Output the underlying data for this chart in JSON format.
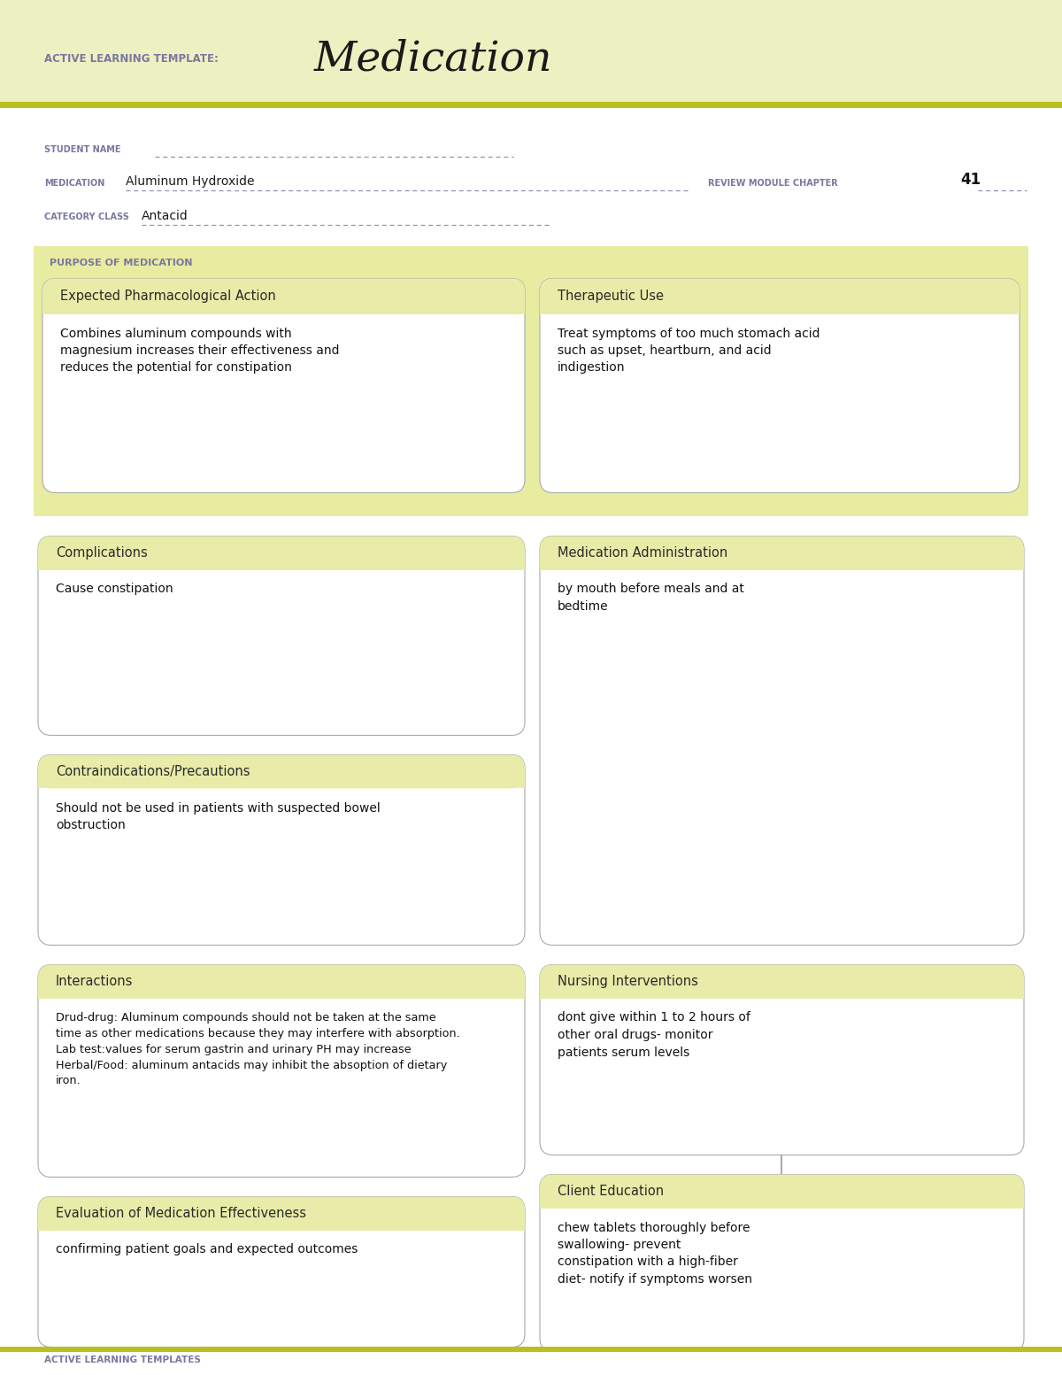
{
  "page_bg": "#ffffff",
  "header_bg": "#edf0c0",
  "header_stripe_color": "#b8c020",
  "header_label": "ACTIVE LEARNING TEMPLATE:",
  "header_title": "Medication",
  "header_label_color": "#7878a0",
  "header_title_color": "#1a1a1a",
  "student_name_label": "STUDENT NAME",
  "medication_label": "MEDICATION",
  "medication_value": "Aluminum Hydroxide",
  "review_label": "REVIEW MODULE CHAPTER",
  "review_value": "41",
  "category_label": "CATEGORY CLASS",
  "category_value": "Antacid",
  "label_color": "#7878a0",
  "underline_color": "#9090bb",
  "purpose_label": "PURPOSE OF MEDICATION",
  "purpose_bg": "#e8eca0",
  "box_border": "#aaaaaa",
  "box_header_bg": "#e8eca8",
  "sections": [
    {
      "title": "Expected Pharmacological Action",
      "content": "Combines aluminum compounds with\nmagnesium increases their effectiveness and\nreduces the potential for constipation"
    },
    {
      "title": "Therapeutic Use",
      "content": "Treat symptoms of too much stomach acid\nsuch as upset, heartburn, and acid\nindigestion"
    },
    {
      "title": "Complications",
      "content": "Cause constipation"
    },
    {
      "title": "Medication Administration",
      "content": "by mouth before meals and at\nbedtime"
    },
    {
      "title": "Contraindications/Precautions",
      "content": "Should not be used in patients with suspected bowel\nobstruction"
    },
    {
      "title": "Nursing Interventions",
      "content": "dont give within 1 to 2 hours of\nother oral drugs- monitor\npatients serum levels"
    },
    {
      "title": "Interactions",
      "content": "Drud-drug: Aluminum compounds should not be taken at the same\ntime as other medications because they may interfere with absorption.\nLab test:values for serum gastrin and urinary PH may increase\nHerbal/Food: aluminum antacids may inhibit the absoption of dietary\niron."
    },
    {
      "title": "Client Education",
      "content": "chew tablets thoroughly before\nswallowing- prevent\nconstipation with a high-fiber\ndiet- notify if symptoms worsen"
    },
    {
      "title": "Evaluation of Medication Effectiveness",
      "content": "confirming patient goals and expected outcomes"
    }
  ],
  "footer_text": "ACTIVE LEARNING TEMPLATES",
  "footer_color": "#7878a0",
  "footer_stripe_color": "#b8c020"
}
